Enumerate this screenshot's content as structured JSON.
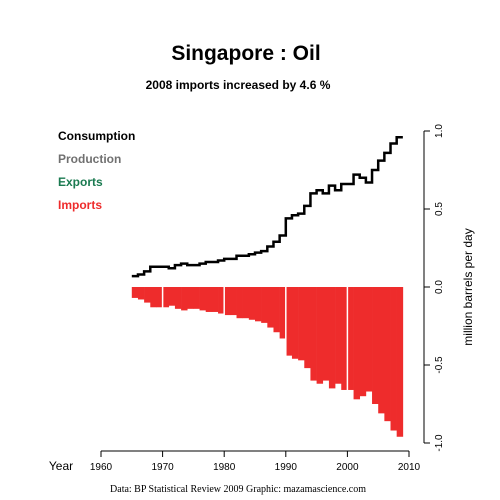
{
  "chart_data": {
    "type": "bar",
    "title": "Singapore :  Oil",
    "subtitle": "2008 imports increased by 4.6 %",
    "x_axis": {
      "label": "Year",
      "range": [
        1960,
        2010
      ],
      "ticks": [
        1960,
        1970,
        1980,
        1990,
        2000,
        2010
      ],
      "tick_labels": [
        "1960",
        "1970",
        "1980",
        "1990",
        "2000",
        "2010"
      ]
    },
    "y_axis": {
      "label": "million barrels per day",
      "position": "right",
      "range": [
        -1.0,
        1.0
      ],
      "ticks": [
        1.0,
        0.5,
        0.0,
        -0.5,
        -1.0
      ],
      "tick_labels": [
        "1.0",
        "0.5",
        "0.0",
        "-0.5",
        "-1.0"
      ]
    },
    "legend": {
      "placement": "top-left",
      "items": [
        {
          "label": "Consumption",
          "color": "#000000"
        },
        {
          "label": "Production",
          "color": "#707070"
        },
        {
          "label": "Exports",
          "color": "#1a7a50"
        },
        {
          "label": "Imports",
          "color": "#ee2c2c"
        }
      ]
    },
    "grid": false,
    "decade_separators": true,
    "series": [
      {
        "name": "Consumption",
        "type": "step",
        "color": "#000000",
        "x": [
          1965,
          1966,
          1967,
          1968,
          1969,
          1970,
          1971,
          1972,
          1973,
          1974,
          1975,
          1976,
          1977,
          1978,
          1979,
          1980,
          1981,
          1982,
          1983,
          1984,
          1985,
          1986,
          1987,
          1988,
          1989,
          1990,
          1991,
          1992,
          1993,
          1994,
          1995,
          1996,
          1997,
          1998,
          1999,
          2000,
          2001,
          2002,
          2003,
          2004,
          2005,
          2006,
          2007,
          2008
        ],
        "values": [
          0.07,
          0.08,
          0.1,
          0.13,
          0.13,
          0.13,
          0.12,
          0.14,
          0.15,
          0.14,
          0.14,
          0.15,
          0.16,
          0.16,
          0.17,
          0.18,
          0.18,
          0.2,
          0.2,
          0.21,
          0.22,
          0.23,
          0.26,
          0.29,
          0.33,
          0.44,
          0.46,
          0.47,
          0.52,
          0.6,
          0.62,
          0.6,
          0.65,
          0.62,
          0.66,
          0.66,
          0.72,
          0.7,
          0.67,
          0.75,
          0.81,
          0.86,
          0.92,
          0.96
        ]
      },
      {
        "name": "Imports",
        "type": "bar",
        "color": "#ee2c2c",
        "x": [
          1965,
          1966,
          1967,
          1968,
          1969,
          1970,
          1971,
          1972,
          1973,
          1974,
          1975,
          1976,
          1977,
          1978,
          1979,
          1980,
          1981,
          1982,
          1983,
          1984,
          1985,
          1986,
          1987,
          1988,
          1989,
          1990,
          1991,
          1992,
          1993,
          1994,
          1995,
          1996,
          1997,
          1998,
          1999,
          2000,
          2001,
          2002,
          2003,
          2004,
          2005,
          2006,
          2007,
          2008
        ],
        "values": [
          -0.07,
          -0.08,
          -0.1,
          -0.13,
          -0.13,
          -0.13,
          -0.12,
          -0.14,
          -0.15,
          -0.14,
          -0.14,
          -0.15,
          -0.16,
          -0.16,
          -0.17,
          -0.18,
          -0.18,
          -0.2,
          -0.2,
          -0.21,
          -0.22,
          -0.23,
          -0.26,
          -0.29,
          -0.33,
          -0.44,
          -0.46,
          -0.47,
          -0.52,
          -0.6,
          -0.62,
          -0.6,
          -0.65,
          -0.62,
          -0.66,
          -0.66,
          -0.72,
          -0.7,
          -0.67,
          -0.75,
          -0.81,
          -0.86,
          -0.92,
          -0.96
        ]
      }
    ]
  },
  "caption": "Data: BP Statistical Review 2009    Graphic: mazamascience.com"
}
